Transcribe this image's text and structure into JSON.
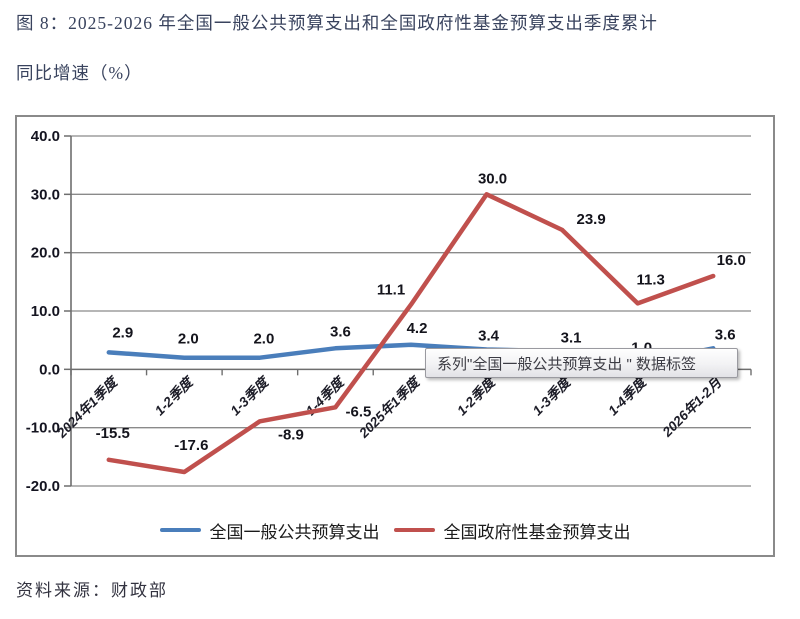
{
  "figure": {
    "title_line1": "图 8：2025-2026 年全国一般公共预算支出和全国政府性基金预算支出季度累计",
    "title_line2": "同比增速（%）",
    "source": "资料来源：财政部"
  },
  "tooltip": {
    "text": "系列\"全国一般公共预算支出 \" 数据标签"
  },
  "chart_data": {
    "type": "line",
    "title": "",
    "xlabel": "",
    "ylabel": "",
    "categories": [
      "2024年1季度",
      "1-2季度",
      "1-3季度",
      "1-4季度",
      "2025年1季度",
      "1-2季度",
      "1-3季度",
      "1-4季度",
      "2026年1-2月"
    ],
    "series": [
      {
        "name": "全国一般公共预算支出",
        "color": "#4A7EBB",
        "values": [
          2.9,
          2.0,
          2.0,
          3.6,
          4.2,
          3.4,
          3.1,
          1.0,
          3.6
        ]
      },
      {
        "name": "全国政府性基金预算支出",
        "color": "#C0504D",
        "values": [
          -15.5,
          -17.6,
          -8.9,
          -6.5,
          11.1,
          30.0,
          23.9,
          11.3,
          16.0
        ]
      }
    ],
    "ylim": [
      -20,
      40
    ],
    "ytick_step": 10,
    "ytick_labels": [
      "40.0",
      "30.0",
      "20.0",
      "10.0",
      "0.0",
      "-10.0",
      "-20.0"
    ],
    "grid": true,
    "legend_position": "bottom",
    "data_labels": true,
    "label_decimals": 1
  }
}
